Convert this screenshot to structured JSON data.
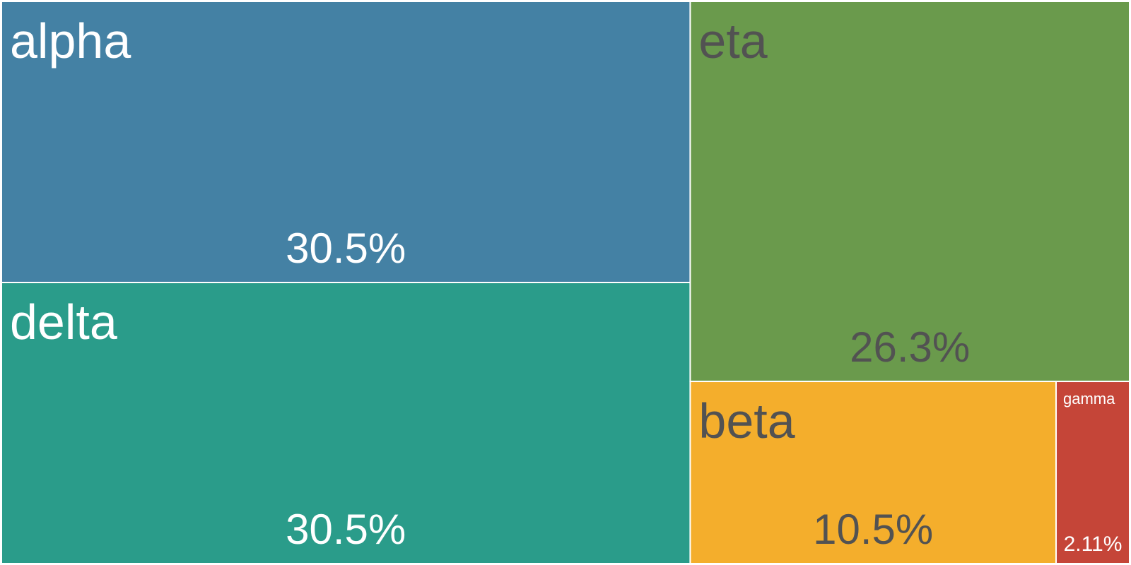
{
  "chart_data": {
    "type": "treemap",
    "title": "",
    "items": [
      {
        "label": "alpha",
        "value_label": "30.5%",
        "value": 30.5,
        "color": "#4481a4",
        "text_color": "#ffffff"
      },
      {
        "label": "delta",
        "value_label": "30.5%",
        "value": 30.5,
        "color": "#2a9c8a",
        "text_color": "#ffffff"
      },
      {
        "label": "eta",
        "value_label": "26.3%",
        "value": 26.3,
        "color": "#6a9a4c",
        "text_color": "#525252"
      },
      {
        "label": "beta",
        "value_label": "10.5%",
        "value": 10.5,
        "color": "#f4ae2c",
        "text_color": "#525252"
      },
      {
        "label": "gamma",
        "value_label": "2.11%",
        "value": 2.11,
        "color": "#c54538",
        "text_color": "#ffffff"
      }
    ]
  }
}
